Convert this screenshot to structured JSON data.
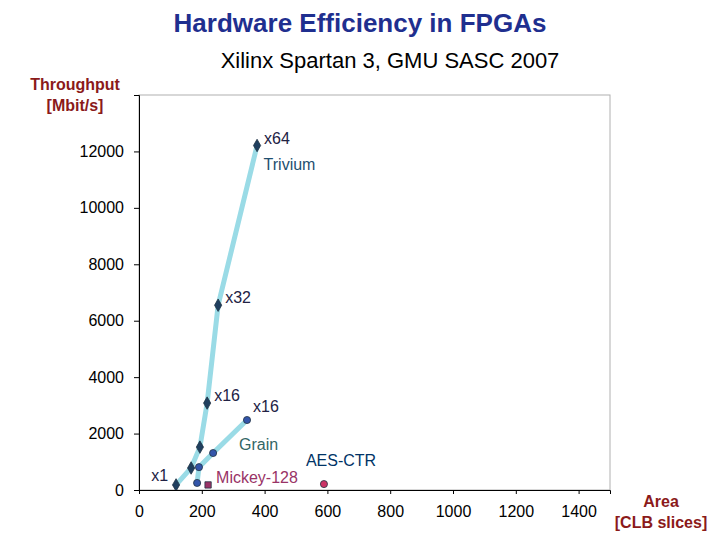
{
  "chart_data": {
    "type": "line",
    "title": "Hardware Efficiency in FPGAs",
    "subtitle": "Xilinx Spartan 3, GMU SASC 2007",
    "y_label": "Throughput [Mbit/s]",
    "x_label": "Area [CLB slices]",
    "xlim": [
      0,
      1500
    ],
    "xticks": [
      0,
      200,
      400,
      600,
      800,
      1000,
      1200,
      1400
    ],
    "ylim": [
      0,
      14000
    ],
    "yticks": [
      0,
      2000,
      4000,
      6000,
      8000,
      10000,
      12000
    ],
    "grid": false,
    "series": [
      {
        "name": "Trivium",
        "type": "line",
        "color": "#1f3f5f",
        "marker": "diamond",
        "line_style": "solid",
        "x": [
          118,
          166,
          194,
          217,
          252,
          376
        ],
        "values": [
          180,
          780,
          1520,
          3080,
          6550,
          12210
        ],
        "labels": [
          "x1",
          null,
          null,
          "x16",
          "x32",
          "x64"
        ]
      },
      {
        "name": "Grain",
        "type": "line",
        "color": "#3355aa",
        "marker": "circle",
        "line_style": "solid",
        "x": [
          185,
          191,
          236,
          344
        ],
        "values": [
          250,
          810,
          1310,
          2480
        ],
        "labels": [
          null,
          null,
          null,
          "x16"
        ]
      },
      {
        "name": "Mickey-128",
        "type": "scatter",
        "color": "#993366",
        "marker": "square",
        "x": [
          220
        ],
        "values": [
          180
        ]
      },
      {
        "name": "AES-CTR",
        "type": "scatter",
        "color": "#cc3366",
        "marker": "circle",
        "x": [
          589
        ],
        "values": [
          210
        ]
      }
    ]
  }
}
